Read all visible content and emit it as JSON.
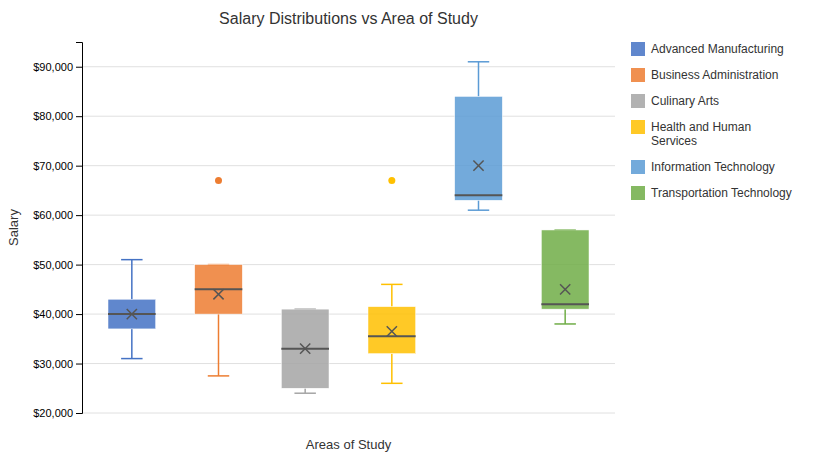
{
  "chart_data": {
    "type": "box",
    "title": "Salary Distributions vs Area of Study",
    "xlabel": "Areas of Study",
    "ylabel": "Salary",
    "series": [
      {
        "name": "Advanced Manufacturing",
        "color": "#4472C4",
        "whislo": 31000,
        "q1": 37000,
        "med": 40000,
        "q3": 43000,
        "whishi": 51000,
        "mean": 40000,
        "fliers": []
      },
      {
        "name": "Business Administration",
        "color": "#ED7D31",
        "whislo": 27500,
        "q1": 40000,
        "med": 45000,
        "q3": 50000,
        "whishi": 50000,
        "mean": 44000,
        "fliers": [
          67000
        ]
      },
      {
        "name": "Culinary Arts",
        "color": "#A5A5A5",
        "whislo": 24000,
        "q1": 25000,
        "med": 33000,
        "q3": 41000,
        "whishi": 41000,
        "mean": 33000,
        "fliers": []
      },
      {
        "name": "Health and Human\nServices",
        "color": "#FFC000",
        "whislo": 26000,
        "q1": 32000,
        "med": 35500,
        "q3": 41500,
        "whishi": 46000,
        "mean": 36500,
        "fliers": [
          67000
        ]
      },
      {
        "name": "Information Technology",
        "color": "#5B9BD5",
        "whislo": 61000,
        "q1": 63000,
        "med": 64000,
        "q3": 84000,
        "whishi": 91000,
        "mean": 70000,
        "fliers": []
      },
      {
        "name": "Transportation Technology",
        "color": "#70AD47",
        "whislo": 38000,
        "q1": 41000,
        "med": 42000,
        "q3": 57000,
        "whishi": 57000,
        "mean": 45000,
        "fliers": []
      }
    ],
    "ylim": [
      20000,
      95000
    ],
    "yticks": [
      {
        "value": 20000,
        "label": "$20,000"
      },
      {
        "value": 30000,
        "label": "$30,000"
      },
      {
        "value": 40000,
        "label": "$40,000"
      },
      {
        "value": 50000,
        "label": "$50,000"
      },
      {
        "value": 60000,
        "label": "$60,000"
      },
      {
        "value": 70000,
        "label": "$70,000"
      },
      {
        "value": 80000,
        "label": "$80,000"
      },
      {
        "value": 90000,
        "label": "$90,000"
      }
    ],
    "grid": true,
    "legend": "right",
    "tick_labels": "y"
  }
}
